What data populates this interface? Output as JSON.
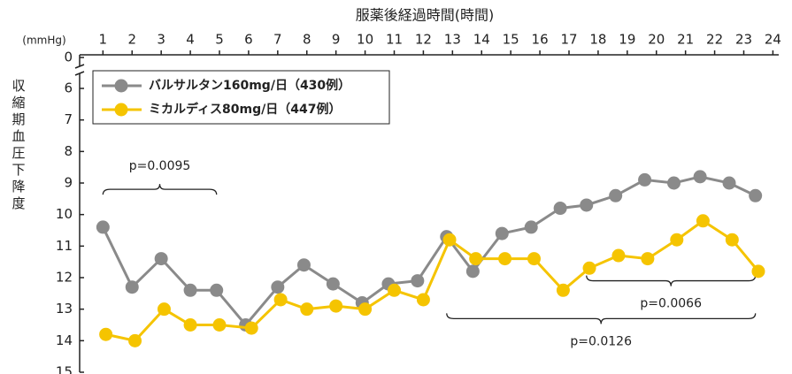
{
  "chart_data": {
    "type": "line",
    "title": "服薬後経過時間(時間)",
    "y_unit": "(mmHg)",
    "y_label": "収縮期血圧下降度",
    "xlim": [
      0.2,
      24.2
    ],
    "xticks": [
      1,
      2,
      3,
      4,
      5,
      6,
      7,
      8,
      9,
      10,
      11,
      12,
      13,
      14,
      15,
      16,
      17,
      18,
      19,
      20,
      21,
      22,
      23,
      24
    ],
    "x_axis_position": "top",
    "ylim": [
      0,
      15
    ],
    "y_inverted": true,
    "y_break": [
      0,
      6
    ],
    "yticks": [
      0,
      6,
      7,
      8,
      9,
      10,
      11,
      12,
      13,
      14,
      15
    ],
    "legend": "upper left",
    "series": [
      {
        "name": "バルサルタン160mg/日（430例）",
        "color": "#8a8a8a",
        "x": [
          1.0,
          2.0,
          3.0,
          4.0,
          4.9,
          5.9,
          7.0,
          7.9,
          8.9,
          9.9,
          10.8,
          11.8,
          12.8,
          13.7,
          14.7,
          15.7,
          16.7,
          17.6,
          18.6,
          19.6,
          20.6,
          21.5,
          22.5,
          23.4
        ],
        "values": [
          10.4,
          12.3,
          11.4,
          12.4,
          12.4,
          13.5,
          12.3,
          11.6,
          12.2,
          12.8,
          12.2,
          12.1,
          10.7,
          11.8,
          10.6,
          10.4,
          9.8,
          9.7,
          9.4,
          8.9,
          9.0,
          8.8,
          9.0,
          9.4
        ]
      },
      {
        "name": "ミカルディス80mg/日（447例）",
        "color": "#f5c400",
        "x": [
          1.1,
          2.1,
          3.1,
          4.0,
          5.0,
          6.1,
          7.1,
          8.0,
          9.0,
          10.0,
          11.0,
          12.0,
          12.9,
          13.8,
          14.8,
          15.8,
          16.8,
          17.7,
          18.7,
          19.7,
          20.7,
          21.6,
          22.6,
          23.5
        ],
        "values": [
          13.8,
          14.0,
          13.0,
          13.5,
          13.5,
          13.6,
          12.7,
          13.0,
          12.9,
          13.0,
          12.4,
          12.7,
          10.8,
          11.4,
          11.4,
          11.4,
          12.4,
          11.7,
          11.3,
          11.4,
          10.8,
          10.2,
          10.8,
          11.8
        ]
      }
    ],
    "annotations": [
      {
        "text": "p=0.0095",
        "x": [
          1,
          4.9
        ],
        "y": 9.2
      },
      {
        "text": "p=0.0066",
        "x": [
          17.6,
          23.4
        ],
        "y": 12.1
      },
      {
        "text": "p=0.0126",
        "x": [
          12.8,
          23.4
        ],
        "y": 13.3
      }
    ]
  }
}
